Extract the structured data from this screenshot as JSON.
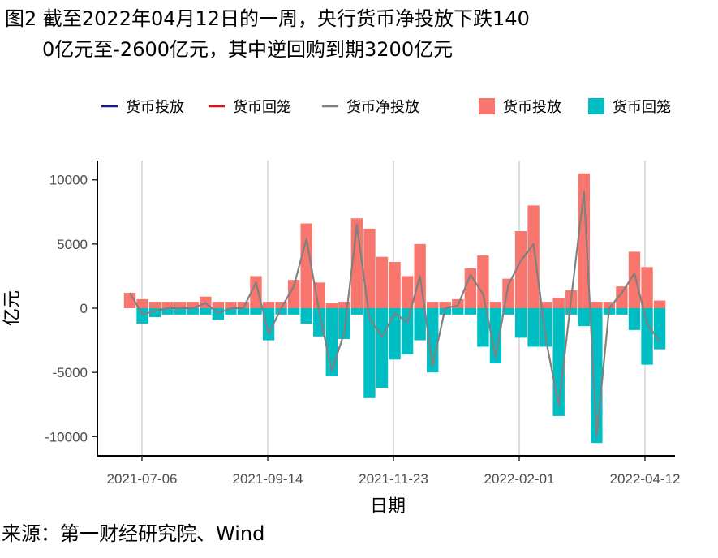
{
  "title_line1": "图2 截至2022年04月12日的一周，央行货币净投放下跌140",
  "title_line2": "0亿元至-2600亿元，其中逆回购到期3200亿元",
  "source": "来源：第一财经研究院、Wind",
  "colors": {
    "injection_line": "#1a1a7a",
    "withdrawal_line": "#e01010",
    "net_line": "#808080",
    "injection_bar": "#F8766D",
    "withdrawal_bar": "#00BFC4",
    "grid": "#bdbdbd"
  },
  "chart_data": {
    "type": "bar",
    "xlabel": "日期",
    "ylabel": "亿元",
    "ylim": [
      -11500,
      11500
    ],
    "yticks": [
      -10000,
      -5000,
      0,
      5000,
      10000
    ],
    "xticks": [
      "2021-07-06",
      "2021-09-14",
      "2021-11-23",
      "2022-02-01",
      "2022-04-12"
    ],
    "legend": [
      {
        "label": "货币投放",
        "kind": "line",
        "color_key": "injection_line"
      },
      {
        "label": "货币回笼",
        "kind": "line",
        "color_key": "withdrawal_line"
      },
      {
        "label": "货币净投放",
        "kind": "line",
        "color_key": "net_line"
      },
      {
        "label": "货币投放",
        "kind": "bar",
        "color_key": "injection_bar"
      },
      {
        "label": "货币回笼",
        "kind": "bar",
        "color_key": "withdrawal_bar"
      }
    ],
    "legend_position": "top",
    "grid": "vertical",
    "series": [
      {
        "name": "货币投放",
        "values": [
          1200,
          700,
          500,
          500,
          500,
          500,
          900,
          500,
          500,
          500,
          2500,
          500,
          500,
          2200,
          6600,
          2000,
          400,
          500,
          7000,
          6200,
          4000,
          3600,
          2500,
          5000,
          500,
          500,
          700,
          3100,
          4100,
          500,
          2300,
          6000,
          8000,
          500,
          800,
          1400,
          10500,
          500,
          500,
          1700,
          4400,
          3200,
          600
        ]
      },
      {
        "name": "货币回笼",
        "values": [
          0,
          -1200,
          -700,
          -500,
          -500,
          -500,
          -500,
          -900,
          -500,
          -500,
          -500,
          -2500,
          -500,
          -500,
          -1200,
          -2200,
          -5300,
          -2400,
          -500,
          -7000,
          -6200,
          -4000,
          -3600,
          -2500,
          -5000,
          -500,
          -500,
          -500,
          -3000,
          -4300,
          -500,
          -2300,
          -3000,
          -3000,
          -8400,
          -500,
          -1400,
          -10500,
          -500,
          -500,
          -1700,
          -4400,
          -3200
        ]
      },
      {
        "name": "货币净投放",
        "values": [
          1200,
          -500,
          -200,
          0,
          0,
          0,
          400,
          -400,
          0,
          0,
          2000,
          -2000,
          0,
          1700,
          5400,
          -200,
          -4900,
          -1900,
          6500,
          -800,
          -2200,
          -400,
          -1100,
          2500,
          -4500,
          0,
          200,
          2600,
          1100,
          -3800,
          1800,
          3700,
          5000,
          -2500,
          -7600,
          900,
          9100,
          -10000,
          0,
          1200,
          2700,
          -1200,
          -2600
        ]
      }
    ]
  }
}
